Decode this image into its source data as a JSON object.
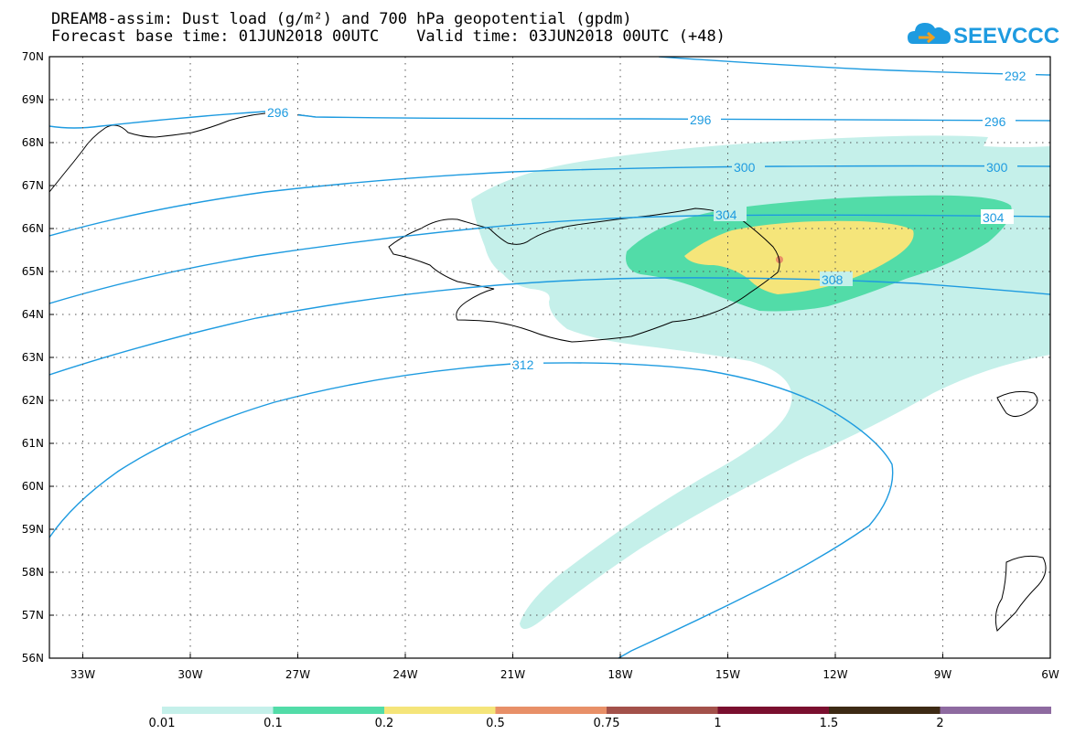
{
  "title": {
    "line1": "DREAM8-assim: Dust load (g/m²) and 700 hPa geopotential (gpdm)",
    "line2": "Forecast base time: 01JUN2018 00UTC    Valid time: 03JUN2018 00UTC (+48)"
  },
  "logo": {
    "text": "SEEVCCC",
    "icon": "cloud-icon",
    "color": "#1e9be0"
  },
  "axes": {
    "lat_labels": [
      "70N",
      "69N",
      "68N",
      "67N",
      "66N",
      "65N",
      "64N",
      "63N",
      "62N",
      "61N",
      "60N",
      "59N",
      "58N",
      "57N",
      "56N"
    ],
    "lon_labels": [
      "33W",
      "30W",
      "27W",
      "24W",
      "21W",
      "18W",
      "15W",
      "12W",
      "9W",
      "6W"
    ]
  },
  "contours": {
    "color": "#1e9be0",
    "labels": [
      "292",
      "296",
      "296",
      "296",
      "300",
      "300",
      "304",
      "304",
      "308",
      "312"
    ]
  },
  "colorbar": {
    "colors": [
      "#c5f0ea",
      "#52dca8",
      "#f5e57a",
      "#e89068",
      "#a3514a",
      "#7a0f2f",
      "#3d2a14",
      "#8e6aa0"
    ],
    "labels": [
      "0.01",
      "0.1",
      "0.2",
      "0.5",
      "0.75",
      "1",
      "1.5",
      "2"
    ]
  }
}
